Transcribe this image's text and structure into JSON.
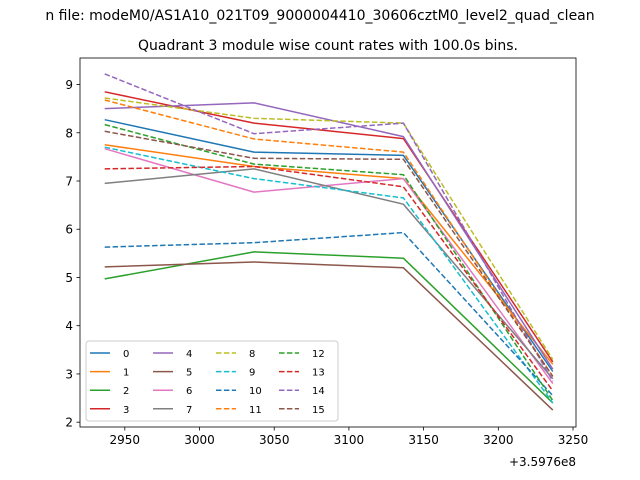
{
  "chart_data": {
    "type": "line",
    "suptitle": "n file: modeM0/AS1A10_021T09_9000004410_30606cztM0_level2_quad_clean",
    "title": "Quadrant 3 module wise count rates with 100.0s bins.",
    "xlabel": "",
    "ylabel": "",
    "x_offset_text": "+3.5976e8",
    "x": [
      2936.5,
      3036.5,
      3136.5,
      3236.5
    ],
    "xlim": [
      2920,
      3252
    ],
    "ylim": [
      1.9,
      9.55
    ],
    "xticks": [
      2950,
      3000,
      3050,
      3100,
      3150,
      3200,
      3250
    ],
    "yticks": [
      2,
      3,
      4,
      5,
      6,
      7,
      8,
      9
    ],
    "legend_loc": "lower-left",
    "legend_ncol": 4,
    "series": [
      {
        "name": "0",
        "color": "#1f77b4",
        "dash": "solid",
        "values": [
          8.27,
          7.6,
          7.53,
          3.05
        ]
      },
      {
        "name": "1",
        "color": "#ff7f0e",
        "dash": "solid",
        "values": [
          7.75,
          7.3,
          7.05,
          3.2
        ]
      },
      {
        "name": "2",
        "color": "#2ca02c",
        "dash": "solid",
        "values": [
          4.97,
          5.53,
          5.4,
          2.4
        ]
      },
      {
        "name": "3",
        "color": "#d62728",
        "dash": "solid",
        "values": [
          8.85,
          8.2,
          7.88,
          3.25
        ]
      },
      {
        "name": "4",
        "color": "#9467bd",
        "dash": "solid",
        "values": [
          8.5,
          8.62,
          7.92,
          3.1
        ]
      },
      {
        "name": "5",
        "color": "#8c564b",
        "dash": "solid",
        "values": [
          5.22,
          5.32,
          5.2,
          2.25
        ]
      },
      {
        "name": "6",
        "color": "#e377c2",
        "dash": "solid",
        "values": [
          7.67,
          6.77,
          7.05,
          2.8
        ]
      },
      {
        "name": "7",
        "color": "#7f7f7f",
        "dash": "solid",
        "values": [
          6.95,
          7.25,
          6.52,
          2.9
        ]
      },
      {
        "name": "8",
        "color": "#bcbd22",
        "dash": "dashed",
        "values": [
          8.72,
          8.3,
          8.2,
          3.3
        ]
      },
      {
        "name": "9",
        "color": "#17becf",
        "dash": "dashed",
        "values": [
          7.7,
          7.05,
          6.65,
          2.4
        ]
      },
      {
        "name": "10",
        "color": "#1f77b4",
        "dash": "dashed",
        "values": [
          5.63,
          5.72,
          5.93,
          2.55
        ]
      },
      {
        "name": "11",
        "color": "#ff7f0e",
        "dash": "dashed",
        "values": [
          8.68,
          7.87,
          7.6,
          2.95
        ]
      },
      {
        "name": "12",
        "color": "#2ca02c",
        "dash": "dashed",
        "values": [
          8.17,
          7.35,
          7.13,
          2.45
        ]
      },
      {
        "name": "13",
        "color": "#d62728",
        "dash": "dashed",
        "values": [
          7.25,
          7.3,
          6.88,
          2.65
        ]
      },
      {
        "name": "14",
        "color": "#9467bd",
        "dash": "dashed",
        "values": [
          9.22,
          7.98,
          8.2,
          2.85
        ]
      },
      {
        "name": "15",
        "color": "#8c564b",
        "dash": "dashed",
        "values": [
          8.03,
          7.47,
          7.45,
          2.95
        ]
      }
    ]
  }
}
